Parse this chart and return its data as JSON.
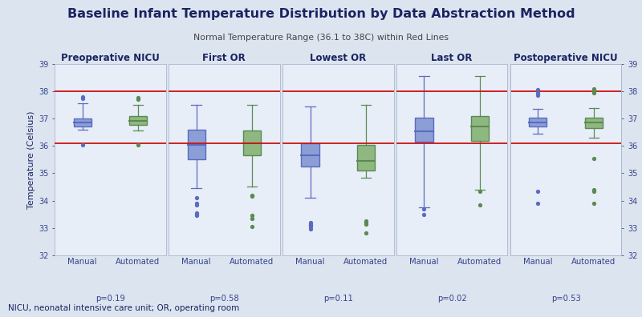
{
  "title": "Baseline Infant Temperature Distribution by Data Abstraction Method",
  "subtitle": "Normal Temperature Range (36.1 to 38C) within Red Lines",
  "footnote": "NICU, neonatal intensive care unit; OR, operating room",
  "ylabel": "Temperature (Celsius)",
  "ylim": [
    32,
    39
  ],
  "yticks": [
    32,
    33,
    34,
    35,
    36,
    37,
    38,
    39
  ],
  "red_lines": [
    36.1,
    38.0
  ],
  "panels": [
    {
      "title": "Preoperative NICU",
      "pvalue": "p=0.19",
      "manual": {
        "q1": 36.72,
        "median": 36.87,
        "q3": 37.02,
        "whisker_low": 36.6,
        "whisker_high": 37.55,
        "outliers_low": [
          36.05
        ],
        "outliers_high": [
          37.75,
          37.8
        ]
      },
      "automated": {
        "q1": 36.78,
        "median": 36.93,
        "q3": 37.1,
        "whisker_low": 36.58,
        "whisker_high": 37.5,
        "outliers_low": [
          36.05
        ],
        "outliers_high": [
          37.72,
          37.78
        ]
      }
    },
    {
      "title": "First OR",
      "pvalue": "p=0.58",
      "manual": {
        "q1": 35.5,
        "median": 36.05,
        "q3": 36.6,
        "whisker_low": 34.45,
        "whisker_high": 37.5,
        "outliers_low": [
          33.9,
          33.85,
          33.55,
          33.5,
          33.45,
          34.1
        ],
        "outliers_high": []
      },
      "automated": {
        "q1": 35.65,
        "median": 36.1,
        "q3": 36.58,
        "whisker_low": 34.5,
        "whisker_high": 37.5,
        "outliers_low": [
          33.05,
          33.35,
          33.45,
          34.15,
          34.2
        ],
        "outliers_high": []
      }
    },
    {
      "title": "Lowest OR",
      "pvalue": "p=0.11",
      "manual": {
        "q1": 35.25,
        "median": 35.65,
        "q3": 36.1,
        "whisker_low": 34.1,
        "whisker_high": 37.45,
        "outliers_low": [
          32.95,
          33.05,
          33.1,
          33.15,
          33.2
        ],
        "outliers_high": []
      },
      "automated": {
        "q1": 35.1,
        "median": 35.45,
        "q3": 36.05,
        "whisker_low": 34.85,
        "whisker_high": 37.5,
        "outliers_low": [
          32.8,
          33.15,
          33.2,
          33.25
        ],
        "outliers_high": []
      }
    },
    {
      "title": "Last OR",
      "pvalue": "p=0.02",
      "manual": {
        "q1": 36.15,
        "median": 36.55,
        "q3": 37.05,
        "whisker_low": 33.75,
        "whisker_high": 38.55,
        "outliers_low": [
          33.5,
          33.7
        ],
        "outliers_high": []
      },
      "automated": {
        "q1": 36.2,
        "median": 36.72,
        "q3": 37.08,
        "whisker_low": 34.4,
        "whisker_high": 38.55,
        "outliers_low": [
          33.85,
          34.35
        ],
        "outliers_high": []
      }
    },
    {
      "title": "Postoperative NICU",
      "pvalue": "p=0.53",
      "manual": {
        "q1": 36.72,
        "median": 36.87,
        "q3": 37.05,
        "whisker_low": 36.45,
        "whisker_high": 37.35,
        "outliers_low": [
          33.9,
          34.35
        ],
        "outliers_high": [
          37.85,
          37.95,
          38.05
        ]
      },
      "automated": {
        "q1": 36.65,
        "median": 36.85,
        "q3": 37.05,
        "whisker_low": 36.3,
        "whisker_high": 37.38,
        "outliers_low": [
          33.9,
          34.35,
          34.4
        ],
        "outliers_high": [
          35.55,
          37.95,
          38.0,
          38.08
        ]
      }
    }
  ],
  "manual_color": "#5b6bbf",
  "automated_color": "#5a8a52",
  "manual_face": "#8b9fd6",
  "automated_face": "#8fb880",
  "bg_color": "#dce4f0",
  "panel_bg": "#e8eef8",
  "title_color": "#1a2460",
  "tick_color": "#334488",
  "red_line_color": "#cc1111"
}
